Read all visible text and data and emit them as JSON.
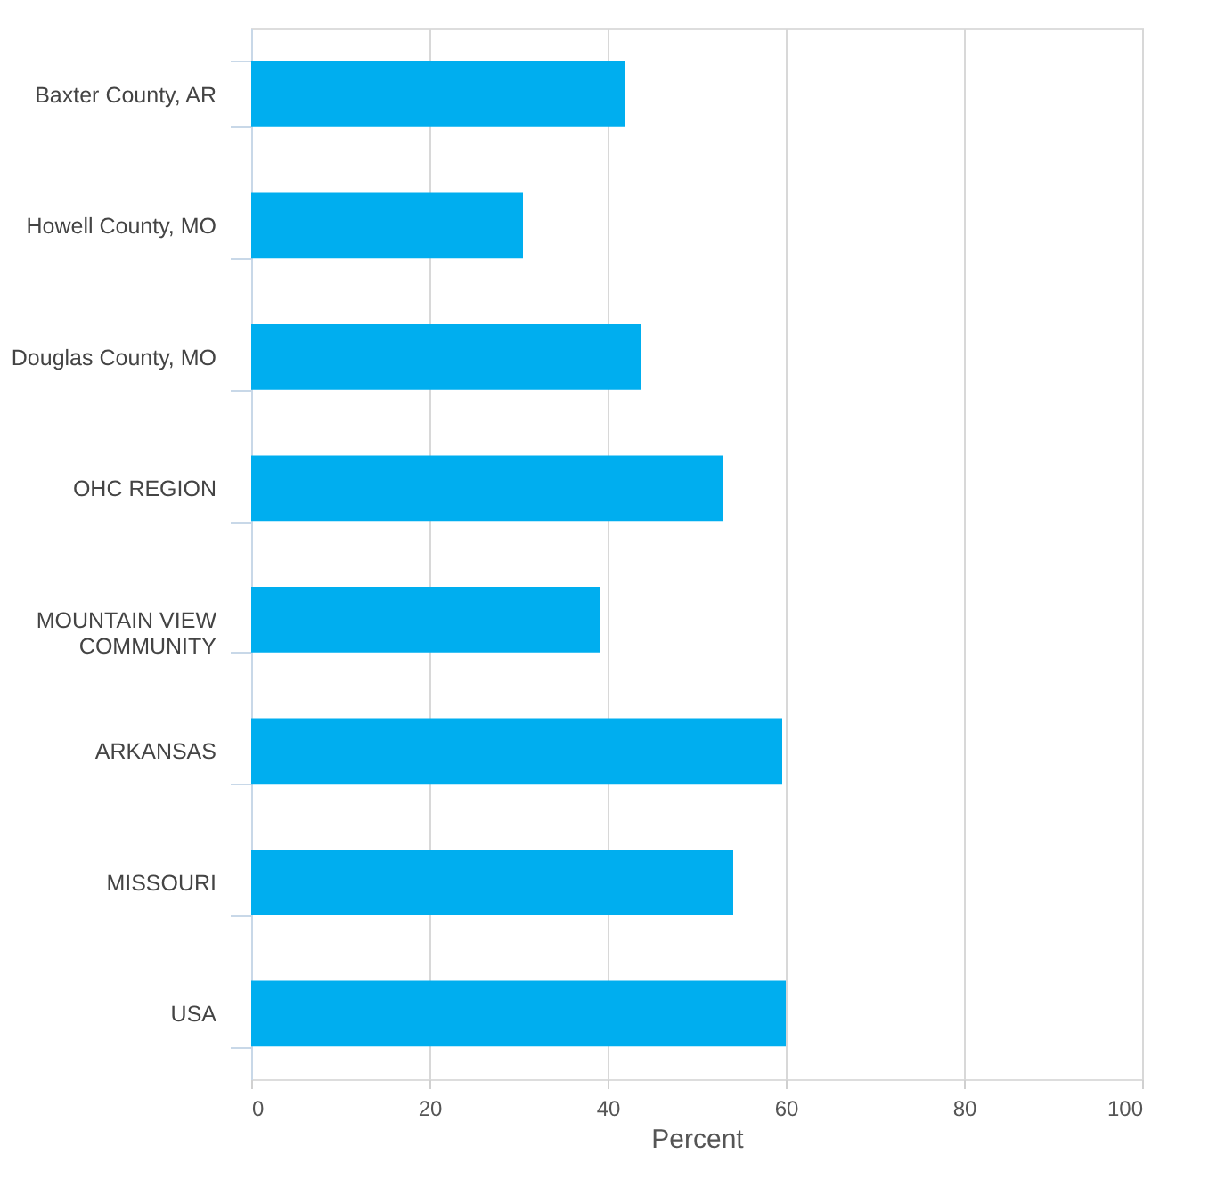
{
  "chart_data": {
    "type": "bar",
    "orientation": "horizontal",
    "xlabel": "Percent",
    "categories": [
      "Baxter County, AR",
      "Howell County, MO",
      "Douglas County, MO",
      "OHC REGION",
      "MOUNTAIN VIEW\nCOMMUNITY",
      "ARKANSAS",
      "MISSOURI",
      "USA"
    ],
    "values": [
      42.0,
      30.5,
      43.8,
      52.9,
      39.2,
      59.6,
      54.1,
      60.0
    ],
    "color": "#00aeef",
    "xlim": [
      0,
      100
    ],
    "xticks": [
      0,
      20,
      40,
      60,
      80,
      100
    ],
    "grid": "x"
  }
}
